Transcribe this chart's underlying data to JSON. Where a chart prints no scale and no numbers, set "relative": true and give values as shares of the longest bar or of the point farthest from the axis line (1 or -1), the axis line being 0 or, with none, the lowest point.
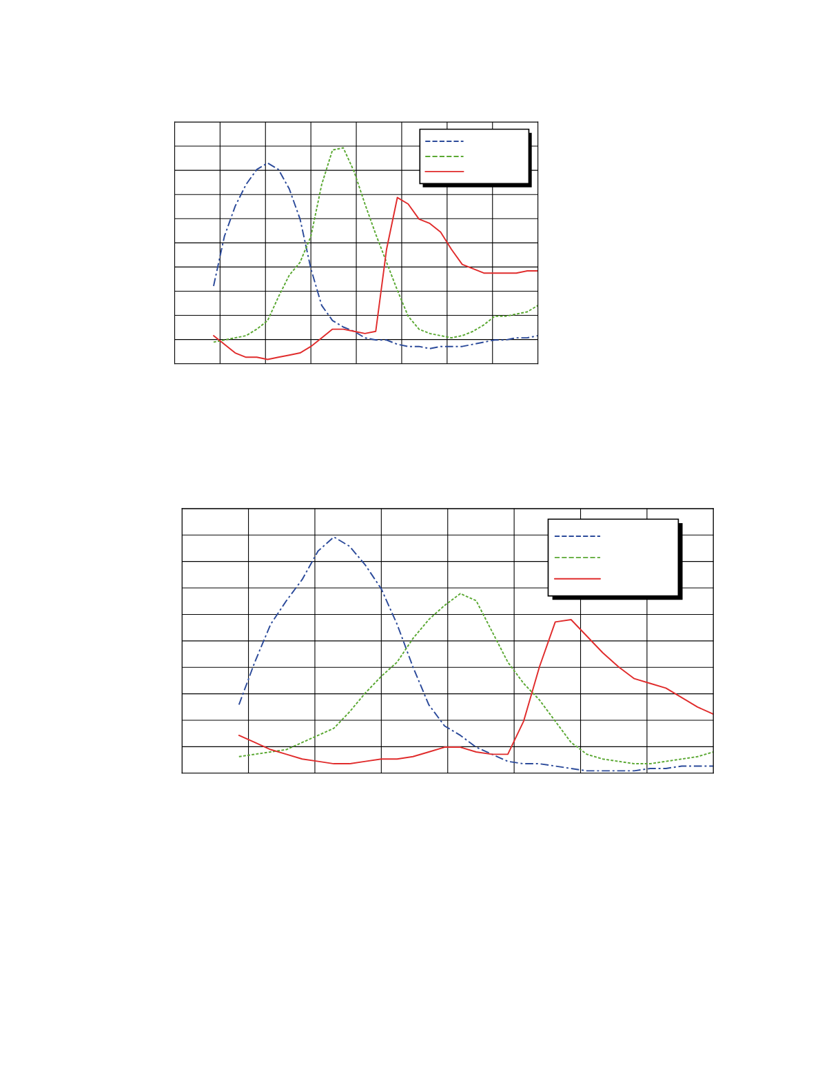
{
  "chart_data": [
    {
      "type": "line",
      "relative": true,
      "grid": true,
      "categories": [
        null,
        null,
        null,
        null,
        null,
        null,
        null,
        null,
        null,
        null,
        null,
        null,
        null,
        null,
        null,
        null,
        null,
        null,
        null,
        null,
        null,
        null,
        null,
        null,
        null,
        null,
        null,
        null,
        null,
        null,
        null
      ],
      "series": [
        {
          "color": "#2b4a9a",
          "line_style": "dashdot",
          "values": [
            0.36,
            0.59,
            0.73,
            0.83,
            0.9,
            0.93,
            0.9,
            0.81,
            0.67,
            0.44,
            0.27,
            0.2,
            0.17,
            0.15,
            0.12,
            0.11,
            0.11,
            0.09,
            0.08,
            0.08,
            0.07,
            0.08,
            0.08,
            0.08,
            0.09,
            0.1,
            0.11,
            0.11,
            0.12,
            0.12,
            0.13
          ]
        },
        {
          "color": "#5aa832",
          "line_style": "dashed",
          "values": [
            0.1,
            0.11,
            0.12,
            0.13,
            0.16,
            0.2,
            0.31,
            0.41,
            0.47,
            0.59,
            0.83,
            0.99,
            1.0,
            0.89,
            0.74,
            0.6,
            0.47,
            0.34,
            0.22,
            0.16,
            0.14,
            0.13,
            0.12,
            0.13,
            0.15,
            0.18,
            0.22,
            0.22,
            0.23,
            0.24,
            0.27
          ]
        },
        {
          "color": "#e02b2b",
          "line_style": "solid",
          "values": [
            0.13,
            0.09,
            0.05,
            0.03,
            0.03,
            0.02,
            0.03,
            0.04,
            0.05,
            0.08,
            0.12,
            0.16,
            0.16,
            0.15,
            0.14,
            0.15,
            0.53,
            0.77,
            0.74,
            0.67,
            0.65,
            0.61,
            0.53,
            0.46,
            0.44,
            0.42,
            0.42,
            0.42,
            0.42,
            0.43,
            0.43
          ]
        }
      ]
    },
    {
      "type": "line",
      "relative": true,
      "grid": true,
      "categories": [
        null,
        null,
        null,
        null,
        null,
        null,
        null,
        null,
        null,
        null,
        null,
        null,
        null,
        null,
        null,
        null,
        null,
        null,
        null,
        null,
        null,
        null,
        null,
        null,
        null,
        null,
        null,
        null,
        null,
        null,
        null
      ],
      "series": [
        {
          "color": "#2b4a9a",
          "line_style": "dashdot",
          "values": [
            0.29,
            0.47,
            0.63,
            0.73,
            0.82,
            0.94,
            1.0,
            0.96,
            0.88,
            0.78,
            0.63,
            0.45,
            0.29,
            0.2,
            0.16,
            0.11,
            0.08,
            0.05,
            0.04,
            0.04,
            0.03,
            0.02,
            0.01,
            0.01,
            0.01,
            0.01,
            0.02,
            0.02,
            0.03,
            0.03,
            0.03
          ]
        },
        {
          "color": "#5aa832",
          "line_style": "dashed",
          "values": [
            0.07,
            0.08,
            0.09,
            0.1,
            0.13,
            0.16,
            0.19,
            0.26,
            0.34,
            0.41,
            0.47,
            0.57,
            0.65,
            0.71,
            0.76,
            0.73,
            0.6,
            0.47,
            0.38,
            0.31,
            0.22,
            0.13,
            0.08,
            0.06,
            0.05,
            0.04,
            0.04,
            0.05,
            0.06,
            0.07,
            0.09
          ]
        },
        {
          "color": "#e02b2b",
          "line_style": "solid",
          "values": [
            0.16,
            0.13,
            0.1,
            0.08,
            0.06,
            0.05,
            0.04,
            0.04,
            0.05,
            0.06,
            0.06,
            0.07,
            0.09,
            0.11,
            0.11,
            0.09,
            0.08,
            0.08,
            0.22,
            0.45,
            0.64,
            0.65,
            0.58,
            0.51,
            0.45,
            0.4,
            0.38,
            0.36,
            0.32,
            0.28,
            0.25
          ]
        }
      ]
    }
  ]
}
